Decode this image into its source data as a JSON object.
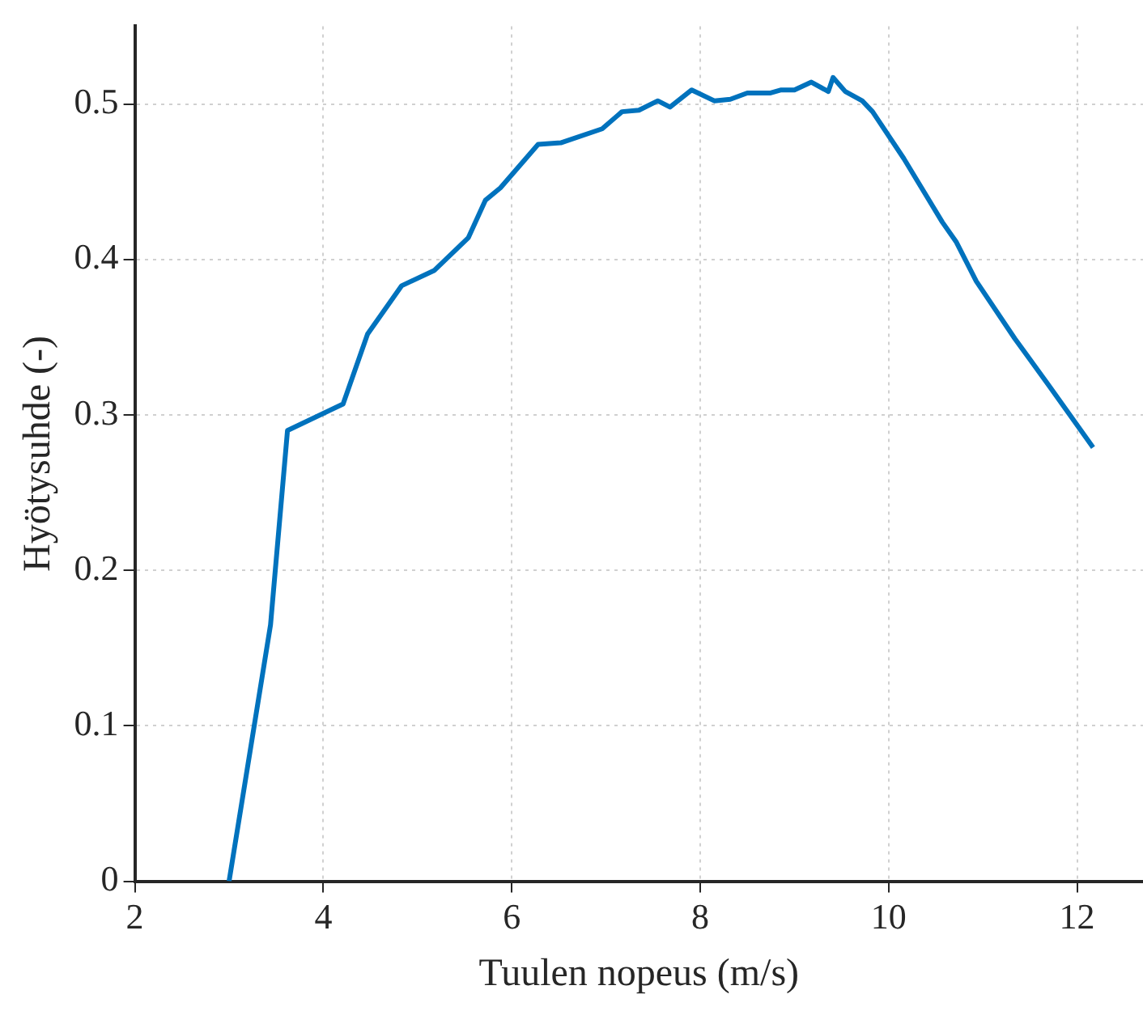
{
  "chart_data": {
    "type": "line",
    "xlabel": "Tuulen nopeus (m/s)",
    "ylabel": "Hyötysuhde (-)",
    "series": [
      {
        "color": "#0072bd",
        "x": [
          3.0,
          3.44,
          3.62,
          4.21,
          4.47,
          4.83,
          5.18,
          5.54,
          5.72,
          5.88,
          6.28,
          6.52,
          6.96,
          7.17,
          7.35,
          7.55,
          7.68,
          7.91,
          8.15,
          8.32,
          8.5,
          8.74,
          8.86,
          9.0,
          9.18,
          9.36,
          9.41,
          9.54,
          9.72,
          9.83,
          10.16,
          10.57,
          10.72,
          10.93,
          11.34,
          11.7,
          12.17
        ],
        "values": [
          0,
          0.165,
          0.29,
          0.307,
          0.352,
          0.383,
          0.393,
          0.414,
          0.438,
          0.446,
          0.474,
          0.475,
          0.484,
          0.495,
          0.496,
          0.502,
          0.498,
          0.509,
          0.502,
          0.503,
          0.507,
          0.507,
          0.509,
          0.509,
          0.514,
          0.508,
          0.517,
          0.508,
          0.502,
          0.495,
          0.465,
          0.424,
          0.411,
          0.386,
          0.349,
          0.319,
          0.279
        ]
      }
    ],
    "xlim": [
      2,
      12.7
    ],
    "xticks": [
      2,
      4,
      6,
      8,
      10,
      12
    ],
    "ylim": [
      0,
      0.55
    ],
    "yticks": [
      0,
      0.1,
      0.2,
      0.3,
      0.4,
      0.5
    ],
    "grid": true,
    "legend": false,
    "marker": "none",
    "line_style": "solid"
  }
}
